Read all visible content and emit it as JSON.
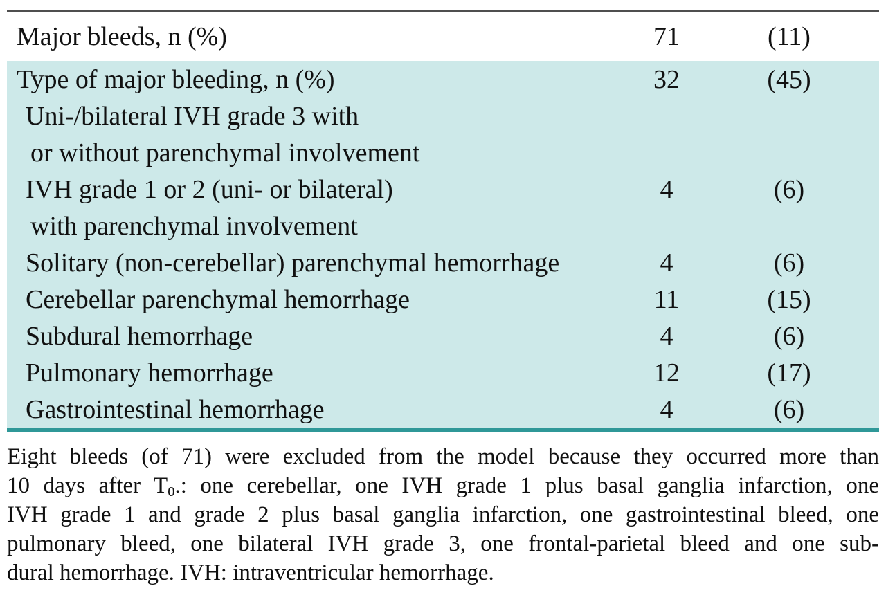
{
  "table": {
    "top_row": {
      "label": "Major bleeds, n (%)",
      "n": "71",
      "pct": "(11)"
    },
    "rows": [
      {
        "label": "Type of major bleeding, n (%)",
        "n": "32",
        "pct": "(45)"
      },
      {
        "label": "Uni-/bilateral IVH grade 3 with"
      },
      {
        "label": "or without parenchymal involvement"
      },
      {
        "label": "IVH grade 1 or 2 (uni- or bilateral)",
        "n": "4",
        "pct": "(6)"
      },
      {
        "label": "with parenchymal involvement"
      },
      {
        "label": "Solitary (non-cerebellar) parenchymal hemorrhage",
        "n": "4",
        "pct": "(6)"
      },
      {
        "label": "Cerebellar parenchymal hemorrhage",
        "n": "11",
        "pct": "(15)"
      },
      {
        "label": "Subdural hemorrhage",
        "n": "4",
        "pct": "(6)"
      },
      {
        "label": "Pulmonary hemorrhage",
        "n": "12",
        "pct": "(17)"
      },
      {
        "label": "Gastrointestinal hemorrhage",
        "n": "4",
        "pct": "(6)"
      }
    ]
  },
  "footnote": {
    "line1": "Eight bleeds (of 71) were excluded from the model because they occurred more than",
    "line2_pre": "10 days after  T",
    "line2_sub": "0",
    "line2_post": ".: one cerebellar, one IVH grade 1 plus basal ganglia infarction, one",
    "line3": "IVH grade 1 and grade 2 plus basal ganglia infarction, one gastrointestinal bleed, one",
    "line4": "pulmonary bleed, one bilateral IVH grade 3, one frontal-parietal bleed and one sub-",
    "line5": "dural hemorrhage. IVH: intraventricular hemorrhage."
  },
  "colors": {
    "section_bg": "#cde9e9",
    "section_rule": "#2f9898",
    "top_rule": "#4f4f4f",
    "text": "#111111"
  }
}
